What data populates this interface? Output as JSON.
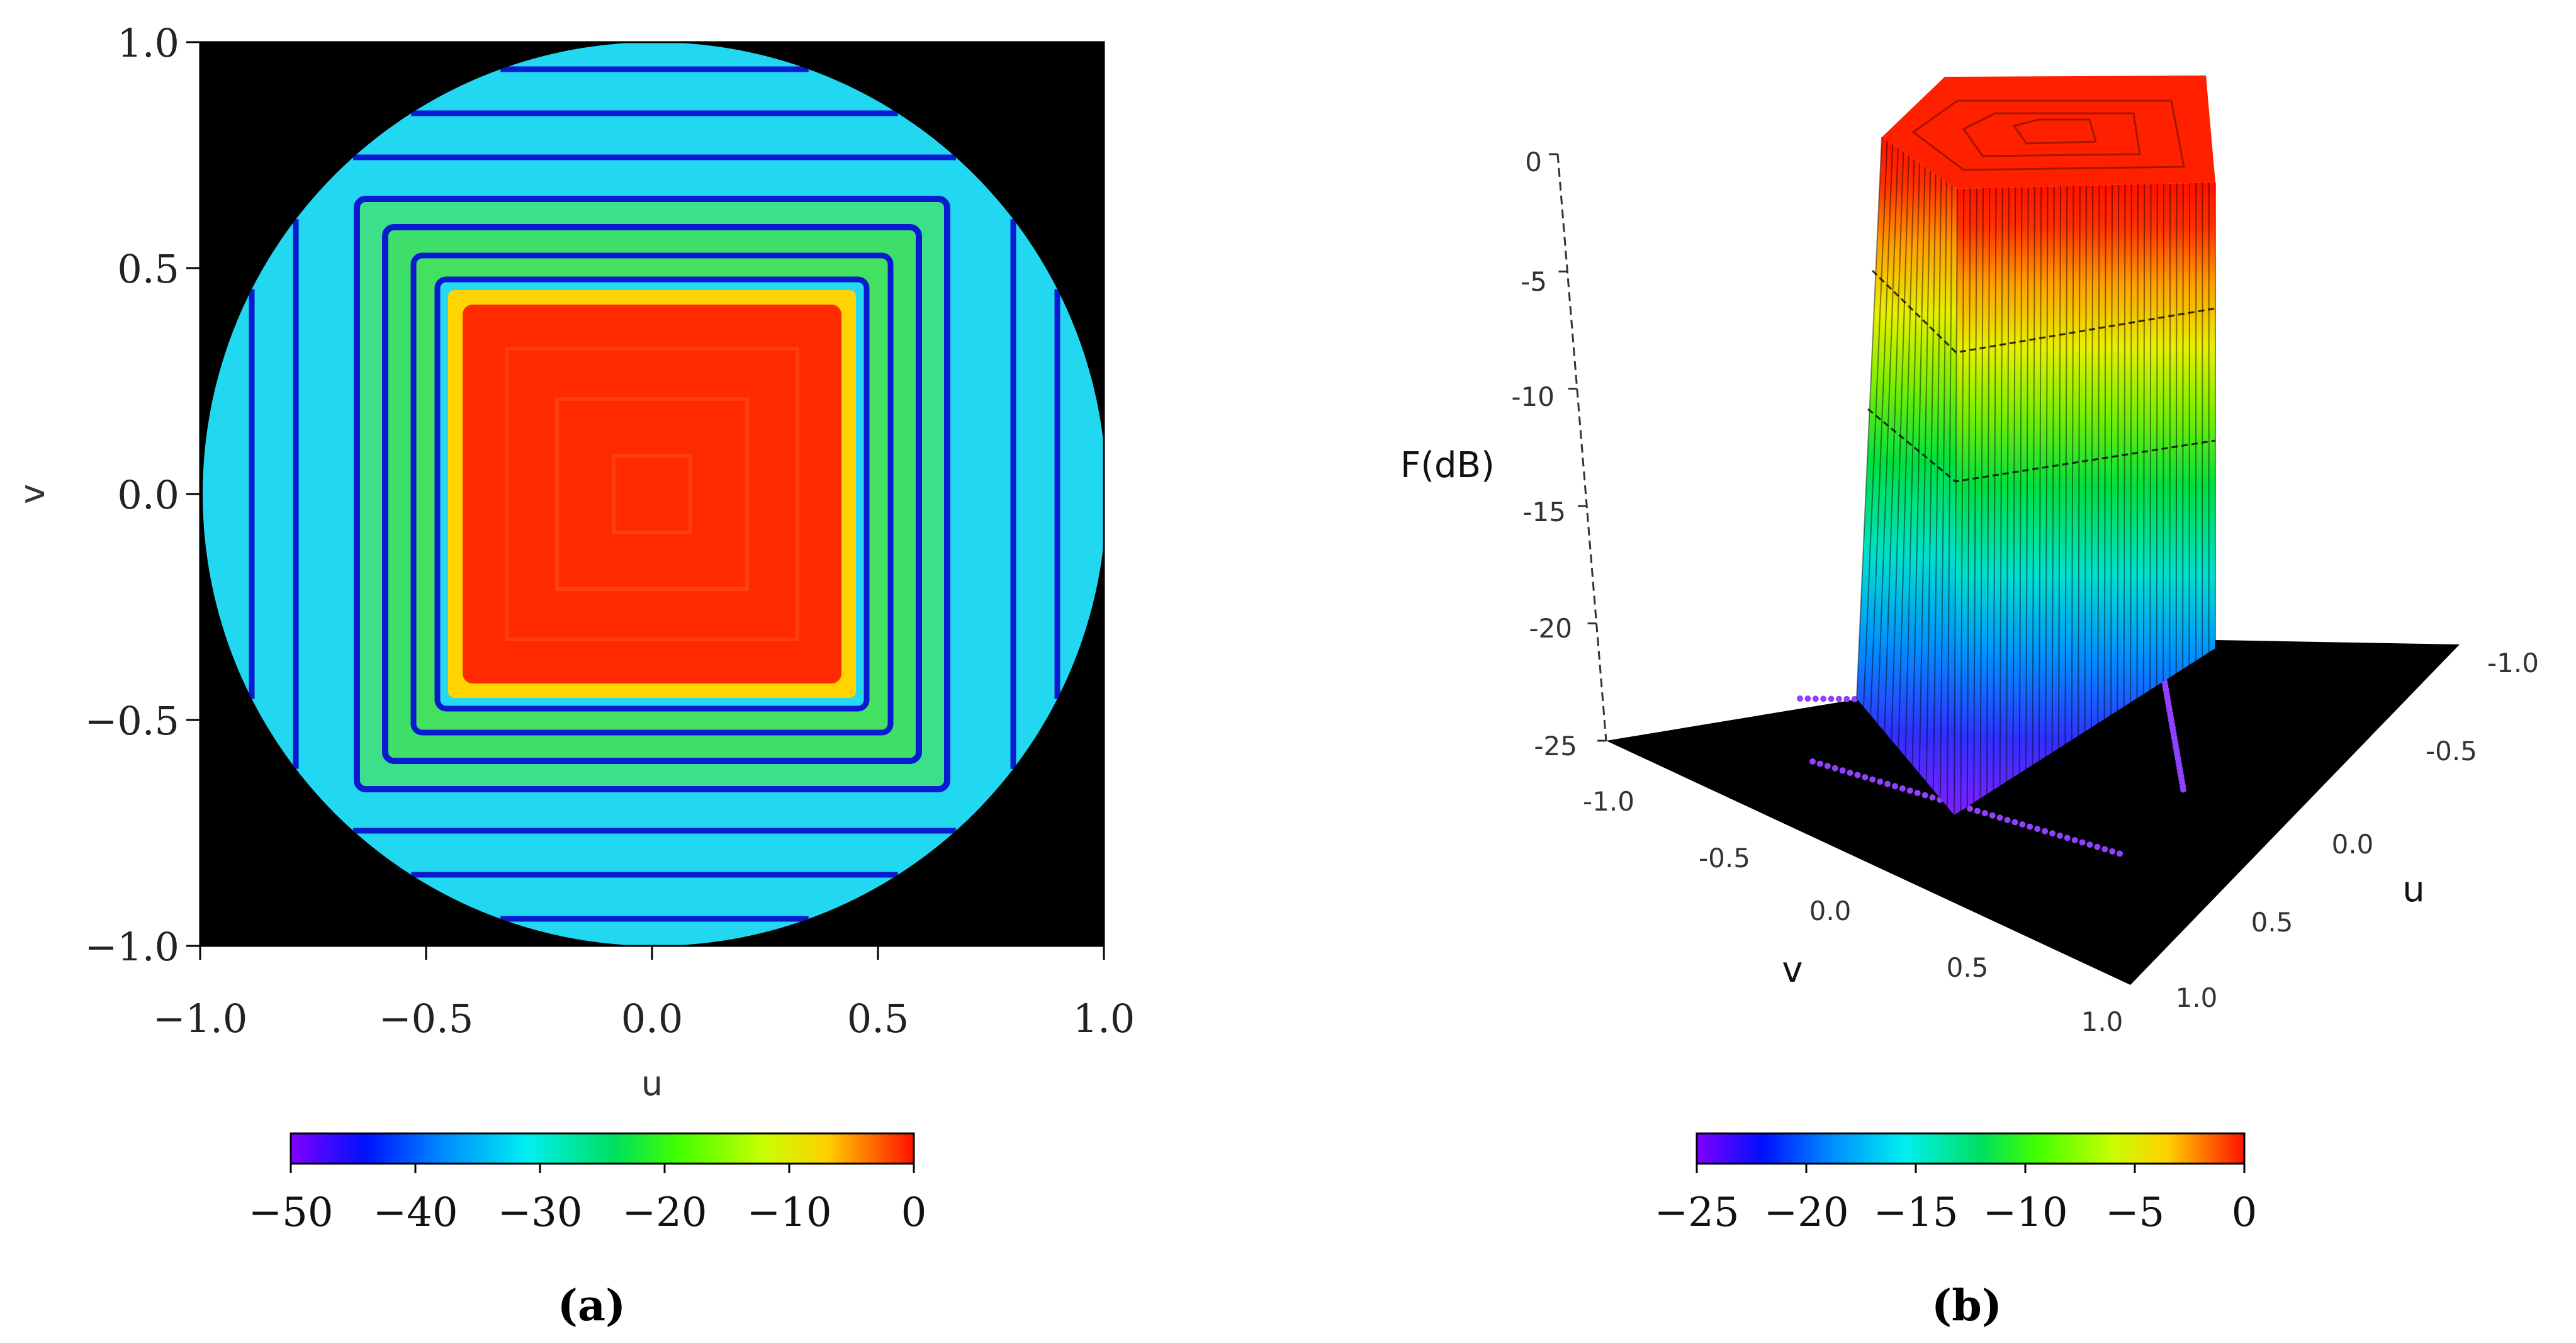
{
  "chart_data": [
    {
      "type": "heatmap",
      "panel_label": "(a)",
      "title": "",
      "xlabel": "u",
      "ylabel": "v",
      "xlim": [
        -1.0,
        1.0
      ],
      "ylim": [
        -1.0,
        1.0
      ],
      "x_ticks": [
        "−1.0",
        "−0.5",
        "0.0",
        "0.5",
        "1.0"
      ],
      "y_ticks": [
        "1.0",
        "0.5",
        "0.0",
        "−0.5",
        "−1.0"
      ],
      "visible_region": "unit circle u²+v²≤1, black outside",
      "main_beam": {
        "shape": "square flat-top",
        "u_range": [
          -0.4,
          0.4
        ],
        "v_range": [
          -0.4,
          0.4
        ],
        "level_db": 0
      },
      "sidelobe_levels_db": [
        -25,
        -30
      ],
      "colorbar": {
        "min": -50,
        "max": 0,
        "ticks": [
          "−50",
          "−40",
          "−30",
          "−20",
          "−10",
          "0"
        ]
      },
      "colors": {
        "outside": "#000000",
        "beam": "#ff2a00"
      }
    },
    {
      "type": "surface",
      "panel_label": "(b)",
      "title": "",
      "zlabel": "F(dB)",
      "xlabel": "u",
      "ylabel": "v",
      "zlim": [
        -25,
        0
      ],
      "z_ticks": [
        "0",
        "-5",
        "-10",
        "-15",
        "-20",
        "-25"
      ],
      "u_ticks": [
        "-1.0",
        "-0.5",
        "0.0",
        "0.5",
        "1.0"
      ],
      "v_ticks": [
        "-1.0",
        "-0.5",
        "0.0",
        "0.5",
        "1.0"
      ],
      "main_beam": {
        "shape": "square flat-top",
        "u_range": [
          -0.4,
          0.4
        ],
        "v_range": [
          -0.4,
          0.4
        ],
        "level_db": 0
      },
      "floor_db": -25,
      "colorbar": {
        "min": -25,
        "max": 0,
        "ticks": [
          "−25",
          "−20",
          "−15",
          "−10",
          "−5",
          "0"
        ]
      }
    }
  ]
}
